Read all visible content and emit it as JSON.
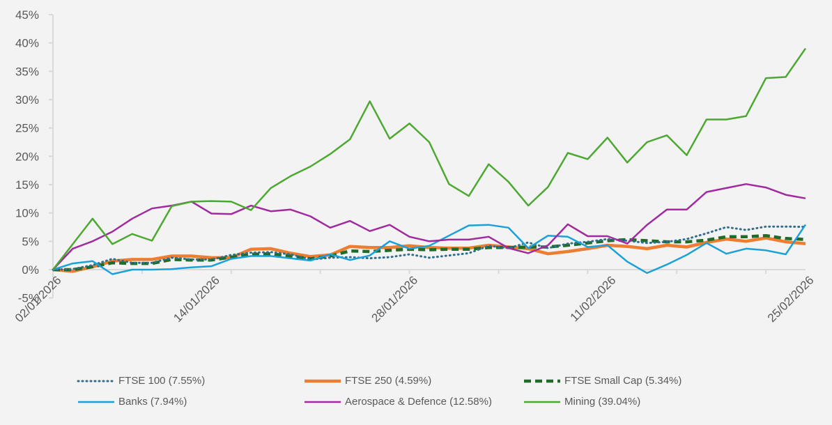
{
  "chart_data": {
    "type": "line",
    "title": "",
    "xlabel": "",
    "ylabel": "",
    "ylim": [
      -5,
      45
    ],
    "yticks": [
      "-5%",
      "0%",
      "5%",
      "10%",
      "15%",
      "20%",
      "25%",
      "30%",
      "35%",
      "40%",
      "45%"
    ],
    "ytick_values": [
      -5,
      0,
      5,
      10,
      15,
      20,
      25,
      30,
      35,
      40,
      45
    ],
    "grid": false,
    "legend_position": "bottom",
    "x": [
      "02/01/2026",
      "05/01/2026",
      "06/01/2026",
      "07/01/2026",
      "08/01/2026",
      "09/01/2026",
      "12/01/2026",
      "13/01/2026",
      "14/01/2026",
      "15/01/2026",
      "16/01/2026",
      "19/01/2026",
      "20/01/2026",
      "21/01/2026",
      "22/01/2026",
      "23/01/2026",
      "26/01/2026",
      "27/01/2026",
      "28/01/2026",
      "29/01/2026",
      "30/01/2026",
      "02/02/2026",
      "03/02/2026",
      "04/02/2026",
      "05/02/2026",
      "06/02/2026",
      "09/02/2026",
      "10/02/2026",
      "11/02/2026",
      "12/02/2026",
      "13/02/2026",
      "16/02/2026",
      "17/02/2026",
      "18/02/2026",
      "19/02/2026",
      "20/02/2026",
      "23/02/2026",
      "24/02/2026",
      "25/02/2026"
    ],
    "x_tick_labels": [
      {
        "index": 0,
        "label": "02/01/2026"
      },
      {
        "index": 8,
        "label": "14/01/2026"
      },
      {
        "index": 18,
        "label": "28/01/2026"
      },
      {
        "index": 28,
        "label": "11/02/2026"
      },
      {
        "index": 38,
        "label": "25/02/2026"
      }
    ],
    "x_minor_tick_every": 4.5,
    "series": [
      {
        "name": "FTSE 100 (7.55%)",
        "color": "#2e6e8e",
        "style": "dotted",
        "values": [
          0,
          0.1,
          0.8,
          1.9,
          1.2,
          1.2,
          2.1,
          1.8,
          1.8,
          2.6,
          3.0,
          3.1,
          2.7,
          1.8,
          2.1,
          2.2,
          2.0,
          2.2,
          2.7,
          2.1,
          2.5,
          2.9,
          4.2,
          3.8,
          4.8,
          3.8,
          4.6,
          4.9,
          5.4,
          5.1,
          4.7,
          4.9,
          5.4,
          6.4,
          7.5,
          7.0,
          7.6,
          7.6,
          7.55
        ]
      },
      {
        "name": "FTSE 250 (4.59%)",
        "color": "#ed7d31",
        "style": "thick",
        "values": [
          0,
          -0.3,
          0.5,
          1.5,
          1.8,
          1.8,
          2.4,
          2.4,
          2.1,
          2.1,
          3.6,
          3.7,
          2.9,
          2.3,
          2.6,
          4.1,
          3.9,
          3.9,
          4.2,
          3.9,
          3.8,
          3.8,
          4.3,
          4.0,
          3.7,
          2.8,
          3.2,
          3.7,
          4.3,
          4.1,
          3.7,
          4.3,
          4.0,
          4.8,
          5.4,
          5.0,
          5.6,
          4.9,
          4.59
        ]
      },
      {
        "name": "FTSE Small Cap (5.34%)",
        "color": "#1e6b2a",
        "style": "dashed",
        "values": [
          0,
          0,
          0.5,
          1.2,
          1.1,
          1.1,
          1.8,
          1.7,
          1.7,
          2.2,
          2.7,
          2.8,
          2.4,
          1.9,
          2.4,
          3.3,
          3.2,
          3.4,
          3.6,
          3.5,
          3.6,
          3.6,
          3.9,
          3.9,
          4.0,
          4.0,
          4.3,
          4.7,
          5.1,
          5.3,
          5.1,
          4.9,
          4.9,
          5.2,
          5.8,
          5.8,
          6.0,
          5.5,
          5.34
        ]
      },
      {
        "name": "Banks (7.94%)",
        "color": "#1ba1d8",
        "style": "solid",
        "values": [
          0,
          1.1,
          1.5,
          -0.8,
          0,
          0,
          0.1,
          0.4,
          0.6,
          1.9,
          2.4,
          2.4,
          2.0,
          1.6,
          2.7,
          1.7,
          2.5,
          5.0,
          3.7,
          4.2,
          6.0,
          7.8,
          7.9,
          7.4,
          3.8,
          6.0,
          5.8,
          4.0,
          4.3,
          1.4,
          -0.6,
          0.9,
          2.6,
          4.7,
          2.8,
          3.7,
          3.4,
          2.7,
          7.94
        ]
      },
      {
        "name": "Aerospace & Defence (12.58%)",
        "color": "#a12a9e",
        "style": "solid",
        "values": [
          0,
          3.7,
          5.0,
          6.7,
          9.0,
          10.8,
          11.3,
          12.0,
          9.9,
          9.8,
          11.3,
          10.3,
          10.6,
          9.4,
          7.4,
          8.6,
          6.8,
          7.9,
          5.8,
          5.0,
          5.3,
          5.3,
          5.8,
          3.8,
          2.9,
          4.3,
          8.0,
          5.9,
          5.9,
          4.6,
          7.9,
          10.6,
          10.6,
          13.7,
          14.4,
          15.1,
          14.5,
          13.2,
          12.58
        ]
      },
      {
        "name": "Mining (39.04%)",
        "color": "#4da832",
        "style": "solid",
        "values": [
          0,
          4.5,
          9.0,
          4.5,
          6.3,
          5.1,
          11.2,
          12.0,
          12.1,
          12.0,
          10.5,
          14.4,
          16.5,
          18.2,
          20.4,
          23.0,
          29.7,
          23.1,
          25.8,
          22.5,
          15.1,
          13.0,
          18.6,
          15.5,
          11.3,
          14.6,
          20.6,
          19.5,
          23.3,
          18.9,
          22.5,
          23.7,
          20.2,
          26.5,
          26.5,
          27.1,
          33.8,
          34.0,
          39.04
        ]
      }
    ]
  },
  "axis_color": "#d9d9d9"
}
